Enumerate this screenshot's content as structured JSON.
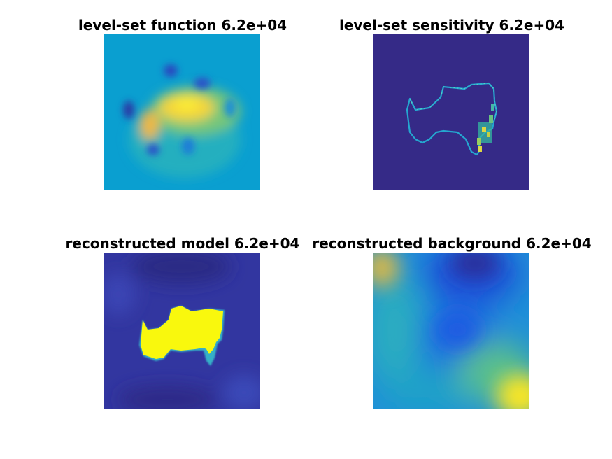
{
  "figure": {
    "background": "#ffffff"
  },
  "chart_data": [
    {
      "type": "heatmap",
      "title": "level-set function 6.2e+04",
      "colormap": "parula",
      "description_colors": {
        "background": "#0a9fd0",
        "peak": "#f8e03a",
        "low": "#2b3ea8"
      }
    },
    {
      "type": "heatmap",
      "title": "level-set sensitivity 6.2e+04",
      "colormap": "parula",
      "description_colors": {
        "background": "#352a87",
        "contour": "#22b5d8",
        "peak": "#e6e040"
      }
    },
    {
      "type": "heatmap",
      "title": "reconstructed model 6.2e+04",
      "colormap": "parula",
      "description_colors": {
        "background": "#3236a0",
        "shape": "#f9f80d"
      }
    },
    {
      "type": "heatmap",
      "title": "reconstructed background 6.2e+04",
      "colormap": "parula",
      "description_colors": {
        "blue": "#1d58e0",
        "teal": "#25b2bd",
        "yellow": "#f6e527"
      }
    }
  ]
}
